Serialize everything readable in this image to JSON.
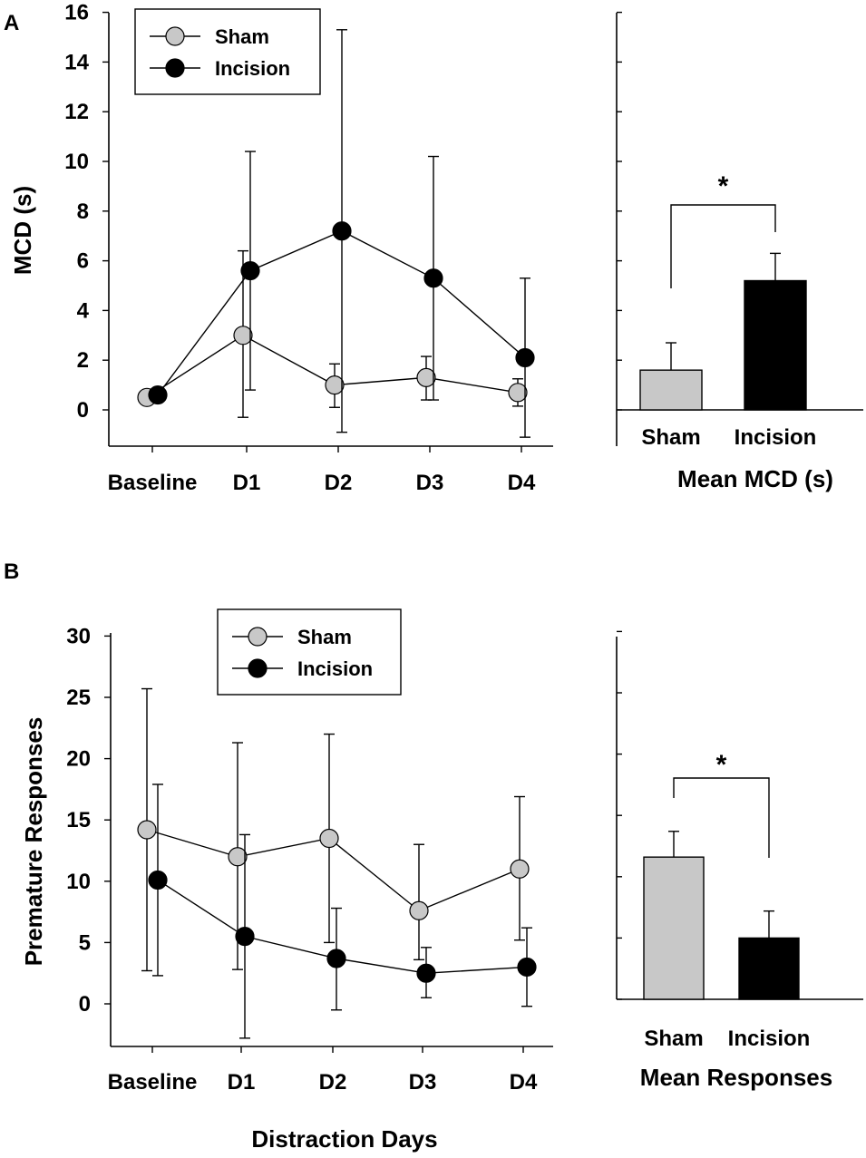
{
  "panel_labels": {
    "a": "A",
    "b": "B"
  },
  "colors": {
    "sham": "#c8c8c8",
    "incision": "#000000",
    "axis": "#000000"
  },
  "shared_xlabel": "Distraction Days",
  "chart_data": [
    {
      "id": "A-line",
      "type": "line",
      "panel": "A",
      "categories": [
        "Baseline",
        "D1",
        "D2",
        "D3",
        "D4"
      ],
      "ylabel": "MCD (s)",
      "ylim": [
        -1.5,
        16
      ],
      "yticks": [
        0,
        2,
        4,
        6,
        8,
        10,
        12,
        14,
        16
      ],
      "legend": {
        "placement": "top-left"
      },
      "series": [
        {
          "name": "Sham",
          "color": "#c8c8c8",
          "values": [
            0.5,
            3.0,
            1.0,
            1.3,
            0.7
          ],
          "err_low": [
            0.1,
            3.3,
            0.9,
            0.9,
            0.55
          ],
          "err_high": [
            0.1,
            3.4,
            0.85,
            0.85,
            0.55
          ]
        },
        {
          "name": "Incision",
          "color": "#000000",
          "values": [
            0.6,
            5.6,
            7.2,
            5.3,
            2.1
          ],
          "err_low": [
            0.1,
            4.8,
            8.1,
            4.9,
            3.2
          ],
          "err_high": [
            0.1,
            4.8,
            8.1,
            4.9,
            3.2
          ]
        }
      ]
    },
    {
      "id": "A-bar",
      "type": "bar",
      "panel": "A",
      "categories": [
        "Sham",
        "Incision"
      ],
      "xlabel": "Mean MCD (s)",
      "ylim": [
        -1.5,
        16
      ],
      "values": [
        1.6,
        5.2
      ],
      "errors": [
        1.1,
        1.1
      ],
      "colors": [
        "#c8c8c8",
        "#000000"
      ],
      "significance": "*"
    },
    {
      "id": "B-line",
      "type": "line",
      "panel": "B",
      "categories": [
        "Baseline",
        "D1",
        "D2",
        "D3",
        "D4"
      ],
      "ylabel": "Premature Responses",
      "ylim": [
        -2.5,
        30
      ],
      "yticks": [
        0,
        5,
        10,
        15,
        20,
        25,
        30
      ],
      "legend": {
        "placement": "top-center"
      },
      "series": [
        {
          "name": "Sham",
          "color": "#c8c8c8",
          "values": [
            14.2,
            12.0,
            13.5,
            7.6,
            11.0
          ],
          "err_low": [
            11.5,
            9.2,
            8.5,
            4.0,
            5.8
          ],
          "err_high": [
            11.5,
            9.3,
            8.5,
            5.4,
            5.9
          ]
        },
        {
          "name": "Incision",
          "color": "#000000",
          "values": [
            10.1,
            5.5,
            3.7,
            2.5,
            3.0
          ],
          "err_low": [
            7.8,
            8.3,
            4.2,
            2.0,
            3.2
          ],
          "err_high": [
            7.8,
            8.3,
            4.1,
            2.1,
            3.2
          ]
        }
      ]
    },
    {
      "id": "B-bar",
      "type": "bar",
      "panel": "B",
      "categories": [
        "Sham",
        "Incision"
      ],
      "xlabel": "Mean Responses",
      "ylim": [
        -1.5,
        30
      ],
      "values": [
        11.6,
        5.0
      ],
      "errors": [
        2.1,
        2.2
      ],
      "colors": [
        "#c8c8c8",
        "#000000"
      ],
      "significance": "*"
    }
  ]
}
